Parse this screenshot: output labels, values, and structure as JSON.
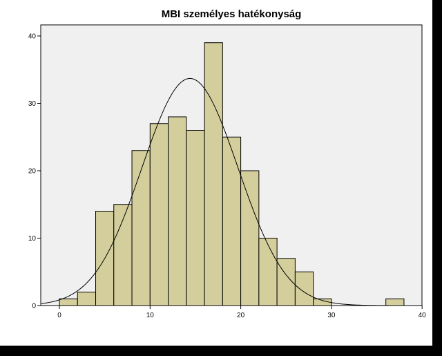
{
  "chart_data": {
    "type": "bar",
    "subtype": "histogram",
    "title": "MBI személyes hatékonyság",
    "xlabel": "",
    "ylabel": "",
    "xlim": [
      -2,
      40
    ],
    "ylim": [
      0,
      42
    ],
    "x_ticks": [
      0,
      10,
      20,
      30,
      40
    ],
    "y_ticks": [
      0,
      10,
      20,
      30,
      40
    ],
    "bin_width": 2,
    "bins": [
      {
        "start": 0,
        "end": 2,
        "count": 1
      },
      {
        "start": 2,
        "end": 4,
        "count": 2
      },
      {
        "start": 4,
        "end": 6,
        "count": 14
      },
      {
        "start": 6,
        "end": 8,
        "count": 15
      },
      {
        "start": 8,
        "end": 10,
        "count": 23
      },
      {
        "start": 10,
        "end": 12,
        "count": 27
      },
      {
        "start": 12,
        "end": 14,
        "count": 28
      },
      {
        "start": 14,
        "end": 16,
        "count": 26
      },
      {
        "start": 16,
        "end": 18,
        "count": 39
      },
      {
        "start": 18,
        "end": 20,
        "count": 25
      },
      {
        "start": 20,
        "end": 22,
        "count": 20
      },
      {
        "start": 22,
        "end": 24,
        "count": 10
      },
      {
        "start": 24,
        "end": 26,
        "count": 7
      },
      {
        "start": 26,
        "end": 28,
        "count": 5
      },
      {
        "start": 28,
        "end": 30,
        "count": 1
      },
      {
        "start": 36,
        "end": 38,
        "count": 1
      }
    ],
    "normal_curve": {
      "mean": 14.4,
      "sd": 5.3,
      "peak": 33.7
    },
    "grid": false,
    "colors": {
      "plot_background": "#f0f0f0",
      "bar_fill": "#d3ce9c",
      "bar_stroke": "#000000",
      "curve": "#000000",
      "outer_background": "#000000",
      "page_background": "#ffffff"
    }
  }
}
